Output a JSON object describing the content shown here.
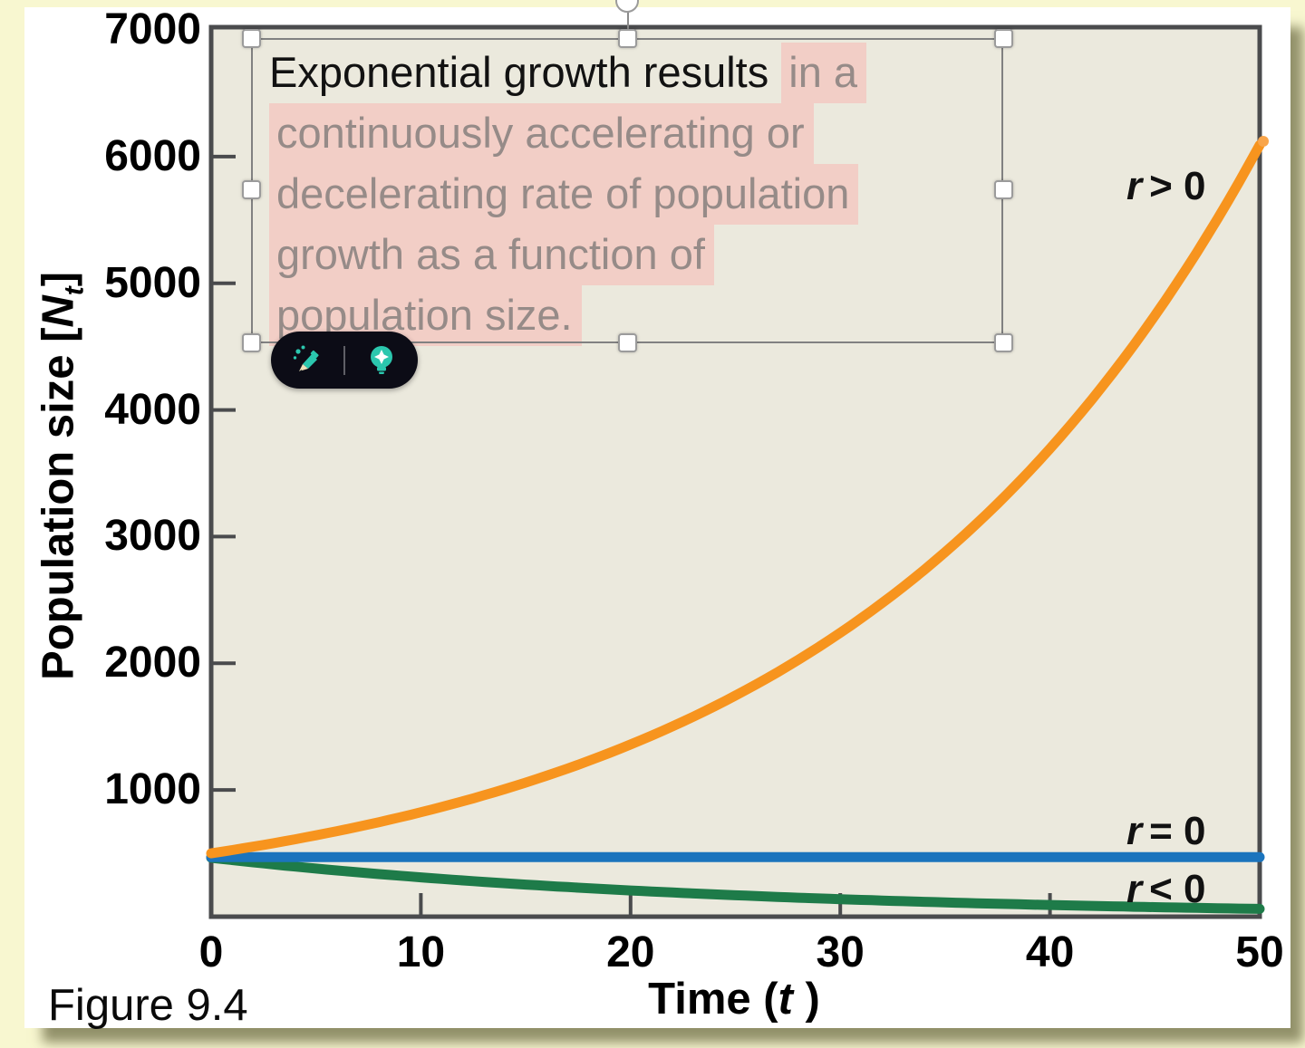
{
  "annotation": {
    "line1_black": "Exponential growth results",
    "line1_highlight": "in a",
    "line2": "continuously accelerating or",
    "line3": "decelerating rate of population",
    "line4": "growth as a function of",
    "line5": "population size.",
    "highlight_color": "#f2cec6",
    "highlight_text_color": "#968b88"
  },
  "toolbar": {
    "background": "#0c0c16",
    "accent": "#2bc7ae",
    "icons": [
      "pencil-sparkle-icon",
      "lightbulb-sparkle-icon"
    ]
  },
  "figure": {
    "label": "Figure 9.4"
  },
  "chart_data": {
    "type": "line",
    "title": "",
    "xlabel_prefix": "Time (",
    "xlabel_var": "t",
    "xlabel_suffix": " )",
    "ylabel_prefix": "Population size [",
    "ylabel_var": "N",
    "ylabel_sub": "t",
    "ylabel_suffix": "]",
    "xlim": [
      0,
      50
    ],
    "ylim": [
      0,
      7000
    ],
    "xticks": [
      0,
      10,
      20,
      30,
      40,
      50
    ],
    "yticks": [
      1000,
      2000,
      3000,
      4000,
      5000,
      6000,
      7000
    ],
    "grid": false,
    "legend": "inline-labels",
    "plot_background": "#ebe9dd",
    "frame_color": "#4a4b4d",
    "series": [
      {
        "name": "r > 0",
        "label_var": "r",
        "label_rest": "> 0",
        "color": "#f7941e",
        "model": {
          "N0": 500,
          "r": 0.05
        },
        "points_t": [
          0,
          10,
          20,
          30,
          40,
          50
        ],
        "points_N": [
          500,
          824,
          1359,
          2241,
          3694,
          6090
        ]
      },
      {
        "name": "r = 0",
        "label_var": "r",
        "label_rest": "= 0",
        "color": "#1b74bd",
        "model": {
          "N0": 470,
          "r": 0
        },
        "points_t": [
          0,
          10,
          20,
          30,
          40,
          50
        ],
        "points_N": [
          470,
          470,
          470,
          470,
          470,
          470
        ]
      },
      {
        "name": "r < 0",
        "label_var": "r",
        "label_rest": "< 0",
        "color": "#1e7b49",
        "model": {
          "N0": 465,
          "r": -0.0405
        },
        "points_t": [
          0,
          10,
          20,
          30,
          40,
          50
        ],
        "points_N": [
          465,
          310,
          207,
          138,
          92,
          61
        ]
      }
    ]
  }
}
